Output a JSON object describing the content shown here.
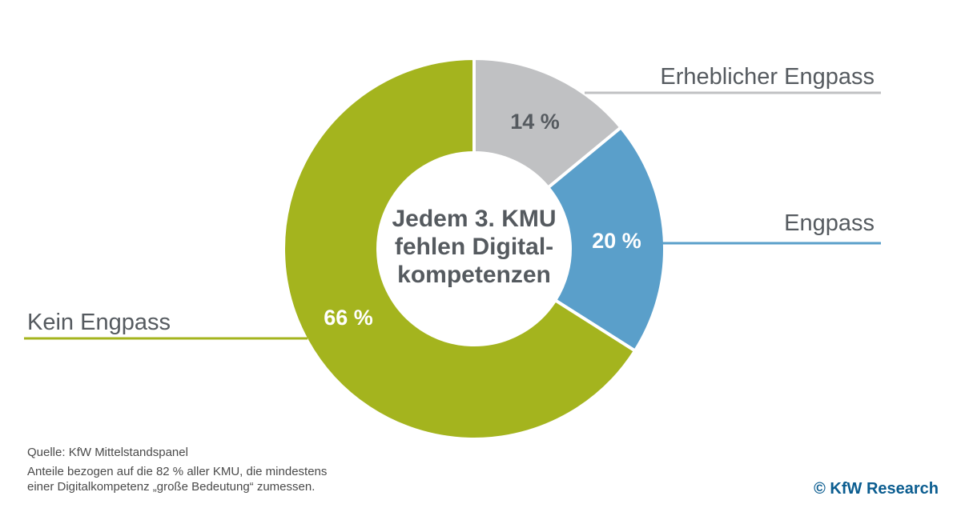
{
  "chart_data": {
    "type": "pie",
    "variant": "donut",
    "center_title": [
      "Jedem 3. KMU",
      "fehlen Digital-",
      "kompetenzen"
    ],
    "slices": [
      {
        "label": "Erheblicher Engpass",
        "value": 14,
        "value_label": "14 %",
        "color": "#c0c1c3",
        "text_color": "#555a5f"
      },
      {
        "label": "Engpass",
        "value": 20,
        "value_label": "20 %",
        "color": "#5a9fca",
        "text_color": "#ffffff"
      },
      {
        "label": "Kein Engpass",
        "value": 66,
        "value_label": "66 %",
        "color": "#a4b41e",
        "text_color": "#ffffff"
      }
    ]
  },
  "footer": {
    "source": "Quelle: KfW Mittelstandspanel",
    "note_line1": "Anteile bezogen auf die 82 % aller KMU, die mindestens",
    "note_line2": "einer Digitalkompetenz „große Bedeutung“ zumessen.",
    "brand": "© KfW Research"
  }
}
